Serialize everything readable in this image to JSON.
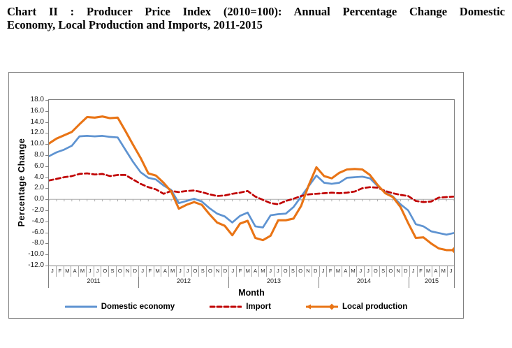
{
  "header": {
    "title_line1": "Chart II : Producer Price Index (2010=100): Annual Percentage Change Domestic",
    "title_line2": "Economy, Local Production and Imports, 2011-2015"
  },
  "chart_data": {
    "type": "line",
    "title": "Chart II : Producer Price Index (2010=100): Annual Percentage Change Domestic Economy, Local Production and Imports, 2011-2015",
    "xlabel": "Month",
    "ylabel": "Percentage Change",
    "ylim": [
      -12.0,
      18.0
    ],
    "y_tick_step": 2.0,
    "y_tick_labels": [
      "18.0",
      "16.0",
      "14.0",
      "12.0",
      "10.0",
      "8.0",
      "6.0",
      "4.0",
      "2.0",
      "0.0",
      "-2.0",
      "-4.0",
      "-6.0",
      "-8.0",
      "-10.0",
      "-12.0"
    ],
    "grid": "zero-line-only",
    "legend_position": "bottom",
    "x_month_labels": [
      "J",
      "F",
      "M",
      "A",
      "M",
      "J",
      "J",
      "O",
      "S",
      "O",
      "N",
      "D",
      "J",
      "F",
      "M",
      "A",
      "M",
      "J",
      "J",
      "O",
      "S",
      "O",
      "N",
      "D",
      "J",
      "F",
      "M",
      "A",
      "M",
      "J",
      "J",
      "O",
      "S",
      "O",
      "N",
      "D",
      "J",
      "F",
      "M",
      "A",
      "M",
      "J",
      "J",
      "O",
      "S",
      "O",
      "N",
      "D",
      "J",
      "F",
      "M",
      "A",
      "M",
      "J"
    ],
    "x_year_groups": [
      {
        "label": "2011",
        "months": 12
      },
      {
        "label": "2012",
        "months": 12
      },
      {
        "label": "2013",
        "months": 12
      },
      {
        "label": "2014",
        "months": 12
      },
      {
        "label": "2015",
        "months": 6
      }
    ],
    "series": [
      {
        "name": "Domestic economy",
        "color": "#5E93D1",
        "line_style": "solid",
        "line_width": 2.7,
        "values": [
          7.8,
          8.5,
          9.0,
          9.7,
          11.4,
          11.5,
          11.4,
          11.5,
          11.3,
          11.2,
          9.0,
          6.8,
          4.9,
          3.9,
          3.6,
          2.5,
          1.7,
          -0.7,
          -0.3,
          0.1,
          -0.4,
          -1.6,
          -2.6,
          -3.1,
          -4.2,
          -3.0,
          -2.4,
          -4.9,
          -5.1,
          -2.9,
          -2.7,
          -2.6,
          -1.4,
          0.5,
          2.4,
          4.3,
          3.0,
          2.8,
          3.0,
          3.9,
          4.0,
          4.1,
          3.8,
          2.4,
          1.3,
          0.5,
          -0.9,
          -2.0,
          -4.5,
          -4.9,
          -5.8,
          -6.1,
          -6.4,
          -6.1
        ]
      },
      {
        "name": "Import",
        "color": "#C00000",
        "line_style": "dashed",
        "line_width": 2.7,
        "values": [
          3.4,
          3.7,
          4.0,
          4.2,
          4.6,
          4.7,
          4.5,
          4.6,
          4.2,
          4.4,
          4.4,
          3.6,
          2.8,
          2.2,
          1.8,
          1.0,
          1.5,
          1.3,
          1.5,
          1.6,
          1.3,
          0.9,
          0.6,
          0.7,
          1.0,
          1.2,
          1.5,
          0.5,
          -0.1,
          -0.7,
          -0.9,
          -0.3,
          0.1,
          0.6,
          0.9,
          1.0,
          1.1,
          1.2,
          1.1,
          1.2,
          1.4,
          2.0,
          2.2,
          2.1,
          1.5,
          1.1,
          0.8,
          0.6,
          -0.3,
          -0.5,
          -0.4,
          0.3,
          0.4,
          0.5
        ]
      },
      {
        "name": "Local production",
        "color": "#E97415",
        "line_style": "solid",
        "line_width": 3.1,
        "end_marker": "diamond",
        "values": [
          10.1,
          11.0,
          11.6,
          12.2,
          13.6,
          14.9,
          14.8,
          15.0,
          14.7,
          14.8,
          12.4,
          9.9,
          7.5,
          4.7,
          4.3,
          3.0,
          1.4,
          -1.7,
          -1.0,
          -0.5,
          -1.0,
          -2.7,
          -4.2,
          -4.8,
          -6.5,
          -4.4,
          -3.9,
          -7.0,
          -7.4,
          -6.6,
          -3.8,
          -3.8,
          -3.5,
          -1.2,
          2.6,
          5.8,
          4.2,
          3.8,
          4.8,
          5.4,
          5.5,
          5.4,
          4.4,
          2.6,
          1.1,
          0.4,
          -1.4,
          -4.3,
          -7.0,
          -6.9,
          -8.0,
          -8.9,
          -9.2,
          -9.2
        ]
      }
    ],
    "axis_colors": {
      "frame": "#808080",
      "zero_line": "#ababab",
      "tick": "#808080"
    }
  }
}
